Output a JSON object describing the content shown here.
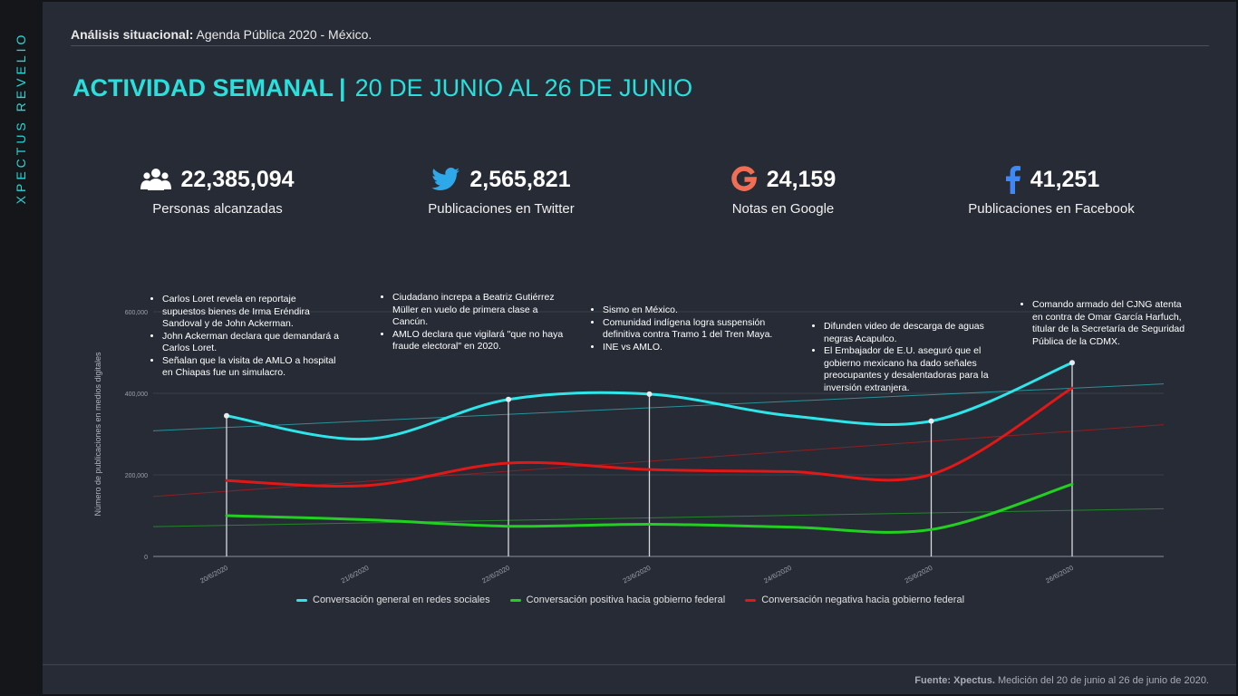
{
  "brand": "XPECTUS REVELIO",
  "header": {
    "subtitle_bold": "Análisis situacional:",
    "subtitle_rest": " Agenda Pública 2020 - México.",
    "title_bold": "ACTIVIDAD SEMANAL",
    "title_sep": "|",
    "title_range": "20 DE JUNIO AL 26 DE JUNIO"
  },
  "kpis": [
    {
      "icon": "people-icon",
      "value": "22,385,094",
      "label": "Personas alcanzadas"
    },
    {
      "icon": "twitter-icon",
      "value": "2,565,821",
      "label": "Publicaciones en Twitter"
    },
    {
      "icon": "google-icon",
      "value": "24,159",
      "label": "Notas en Google"
    },
    {
      "icon": "facebook-icon",
      "value": "41,251",
      "label": "Publicaciones en Facebook"
    }
  ],
  "annotations": [
    {
      "items": [
        "Carlos Loret revela en reportaje supuestos bienes de Irma Eréndira Sandoval y de John Ackerman.",
        "John Ackerman declara que demandará a Carlos Loret.",
        "Señalan que la visita de AMLO a hospital en Chiapas fue un simulacro."
      ]
    },
    {
      "items": [
        "Ciudadano increpa a Beatriz Gutiérrez Müller en vuelo de primera clase a Cancún.",
        "AMLO declara que vigilará \"que no haya fraude electoral\" en 2020."
      ]
    },
    {
      "items": [
        "Sismo en México.",
        "Comunidad indígena logra suspensión definitiva contra Tramo 1 del Tren Maya.",
        "INE vs AMLO."
      ]
    },
    {
      "items": [
        "Difunden video de descarga de aguas negras Acapulco.",
        "El Embajador de E.U. aseguró que el gobierno mexicano ha dado señales preocupantes y desalentadoras para la inversión extranjera."
      ]
    },
    {
      "items": [
        "Comando armado del CJNG atenta en contra de Omar García Harfuch, titular de la Secretaría de Seguridad Pública de la CDMX."
      ]
    }
  ],
  "chart_data": {
    "type": "line",
    "categories": [
      "20/6/2020",
      "21/6/2020",
      "22/6/2020",
      "23/6/2020",
      "24/6/2020",
      "25/6/2020",
      "26/6/2020"
    ],
    "ylabel": "Número de publicaciones en medios digitales",
    "ylim": [
      0,
      600000
    ],
    "yticks": [
      0,
      200000,
      400000,
      600000
    ],
    "ytick_labels": [
      "0",
      "200,000",
      "400,000",
      "600,000"
    ],
    "grid": true,
    "legend_position": "bottom",
    "trendlines": true,
    "marked_categories": [
      0,
      2,
      3,
      5,
      6
    ],
    "series": [
      {
        "name": "Conversación general en redes sociales",
        "color": "#2ee6ea",
        "values": [
          345000,
          288000,
          385000,
          398000,
          345000,
          332000,
          475000
        ],
        "trend": [
          308000,
          423000
        ]
      },
      {
        "name": "Conversación positiva hacia gobierno federal",
        "color": "#22d022",
        "values": [
          100000,
          90000,
          74000,
          79000,
          72000,
          66000,
          177000
        ],
        "trend": [
          73000,
          117000
        ]
      },
      {
        "name": "Conversación negativa hacia gobierno federal",
        "color": "#e01818",
        "values": [
          186000,
          174000,
          229000,
          213000,
          208000,
          201000,
          413000
        ],
        "trend": [
          147000,
          323000
        ]
      }
    ]
  },
  "footer": {
    "source_bold": "Fuente: Xpectus.",
    "source_rest": " Medición del 20 de junio al 26 de junio de 2020."
  }
}
